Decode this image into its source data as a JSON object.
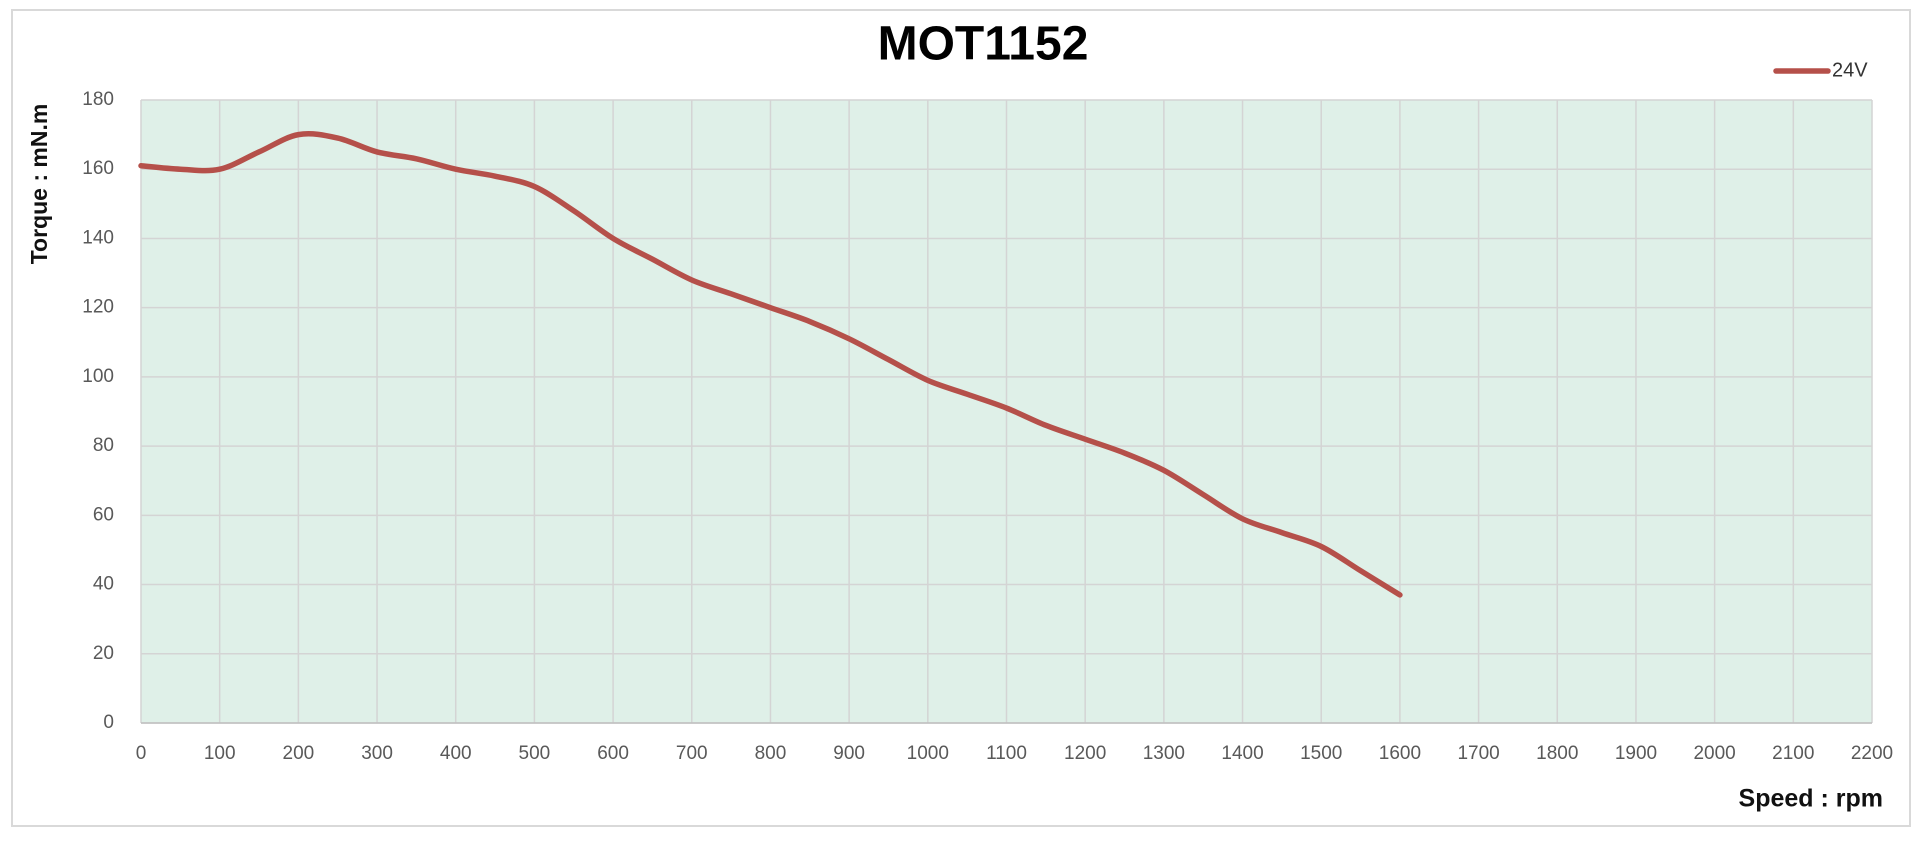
{
  "chart_data": {
    "type": "line",
    "title": "MOT1152",
    "x_label": "Speed : rpm",
    "y_label": "Torque : mN.m",
    "x": [
      0,
      50,
      100,
      150,
      200,
      250,
      300,
      350,
      400,
      450,
      500,
      550,
      600,
      650,
      700,
      750,
      800,
      850,
      900,
      950,
      1000,
      1050,
      1100,
      1150,
      1200,
      1250,
      1300,
      1350,
      1400,
      1450,
      1500,
      1550,
      1600
    ],
    "series": [
      {
        "name": "24V",
        "color": "#b5504a",
        "values": [
          161,
          160,
          160,
          165,
          170,
          169,
          165,
          163,
          160,
          158,
          155,
          148,
          140,
          134,
          128,
          124,
          120,
          116,
          111,
          105,
          99,
          95,
          91,
          86,
          82,
          78,
          73,
          66,
          59,
          55,
          51,
          44,
          37
        ]
      }
    ],
    "xlim": [
      0,
      2200
    ],
    "xticks": [
      0,
      100,
      200,
      300,
      400,
      500,
      600,
      700,
      800,
      900,
      1000,
      1100,
      1200,
      1300,
      1400,
      1500,
      1600,
      1700,
      1800,
      1900,
      2000,
      2100,
      2200
    ],
    "ylim": [
      0,
      180
    ],
    "yticks": [
      0,
      20,
      40,
      60,
      80,
      100,
      120,
      140,
      160,
      180
    ],
    "grid": true,
    "legend": "top-right",
    "plot_background": "#dff0e8"
  }
}
